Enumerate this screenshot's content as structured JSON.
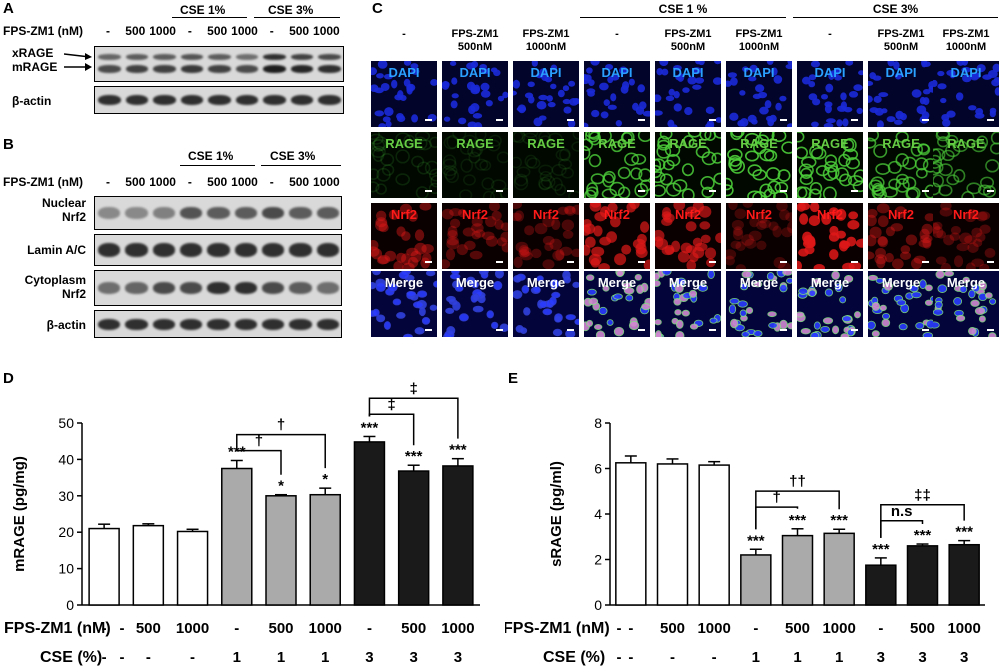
{
  "panel_labels": {
    "A": "A",
    "B": "B",
    "C": "C",
    "D": "D",
    "E": "E"
  },
  "blot_a": {
    "fps_label": "FPS-ZM1 (nM)",
    "cse1": "CSE 1%",
    "cse3": "CSE 3%",
    "lanes": [
      "-",
      "500",
      "1000",
      "-",
      "500",
      "1000",
      "-",
      "500",
      "1000"
    ],
    "rows": [
      {
        "label": "xRAGE\nmRAGE"
      },
      {
        "label": "β-actin"
      }
    ],
    "xrage": "xRAGE",
    "mrage": "mRAGE",
    "actin": "β-actin"
  },
  "blot_b": {
    "fps_label": "FPS-ZM1 (nM)",
    "cse1": "CSE 1%",
    "cse3": "CSE 3%",
    "lanes": [
      "-",
      "500",
      "1000",
      "-",
      "500",
      "1000",
      "-",
      "500",
      "1000"
    ],
    "nuclear": "Nuclear",
    "nrf2_a": "Nrf2",
    "lamin": "Lamin A/C",
    "cytoplasm": "Cytoplasm",
    "nrf2_b": "Nrf2",
    "actin": "β-actin"
  },
  "microscopy": {
    "cse1": "CSE 1 %",
    "cse3": "CSE 3%",
    "columns": [
      {
        "l1": "-",
        "l2": ""
      },
      {
        "l1": "FPS-ZM1",
        "l2": "500nM"
      },
      {
        "l1": "FPS-ZM1",
        "l2": "1000nM"
      },
      {
        "l1": "-",
        "l2": ""
      },
      {
        "l1": "FPS-ZM1",
        "l2": "500nM"
      },
      {
        "l1": "FPS-ZM1",
        "l2": "1000nM"
      },
      {
        "l1": "-",
        "l2": ""
      },
      {
        "l1": "FPS-ZM1",
        "l2": "500nM"
      },
      {
        "l1": "FPS-ZM1",
        "l2": "1000nM"
      }
    ],
    "rows": [
      {
        "label": "DAPI",
        "color": "#2aa0ff"
      },
      {
        "label": "RAGE",
        "color": "#66cc44"
      },
      {
        "label": "Nrf2",
        "color": "#ff1a1a"
      },
      {
        "label": "Merge",
        "color": "#ffffff"
      }
    ],
    "rage_intensity": [
      0.15,
      0.1,
      0.1,
      0.8,
      0.85,
      0.9,
      0.85,
      0.75,
      0.6
    ],
    "nrf2_intensity": [
      0.45,
      0.35,
      0.3,
      0.7,
      0.65,
      0.25,
      0.85,
      0.4,
      0.3
    ]
  },
  "chart_data": [
    {
      "type": "bar",
      "ylabel": "mRAGE (pg/mg)",
      "ylim": [
        0,
        50
      ],
      "yticks": [
        "0",
        "10",
        "20",
        "30",
        "40",
        "50"
      ],
      "values": [
        21,
        21.8,
        20.2,
        37.5,
        30,
        30.3,
        44.8,
        36.8,
        38.2
      ],
      "errors": [
        1.2,
        0.5,
        0.6,
        2.2,
        0.3,
        1.8,
        1.5,
        1.6,
        2.0
      ],
      "colors": [
        "#ffffff",
        "#ffffff",
        "#ffffff",
        "#aaaaaa",
        "#aaaaaa",
        "#aaaaaa",
        "#1a1a1a",
        "#1a1a1a",
        "#1a1a1a"
      ],
      "marks": [
        "",
        "",
        "",
        "***",
        "*",
        "*",
        "***",
        "***",
        "***"
      ],
      "row1_label": "FPS-ZM1 (nM)",
      "row1": [
        "-",
        "500",
        "1000",
        "-",
        "500",
        "1000",
        "-",
        "500",
        "1000"
      ],
      "row2_label": "CSE (%)",
      "row2": [
        "-",
        "-",
        "-",
        "1",
        "1",
        "1",
        "3",
        "3",
        "3"
      ],
      "brackets": [
        {
          "from": 3,
          "to": 4,
          "level": 1,
          "label": "†"
        },
        {
          "from": 3,
          "to": 5,
          "level": 2,
          "label": "†"
        },
        {
          "from": 6,
          "to": 7,
          "level": 1,
          "label": "‡"
        },
        {
          "from": 6,
          "to": 8,
          "level": 2,
          "label": "‡"
        }
      ]
    },
    {
      "type": "bar",
      "ylabel": "sRAGE (pg/ml)",
      "ylim": [
        0,
        8
      ],
      "yticks": [
        "0",
        "2",
        "4",
        "6",
        "8"
      ],
      "values": [
        6.25,
        6.2,
        6.15,
        2.2,
        3.05,
        3.15,
        1.75,
        2.6,
        2.65
      ],
      "errors": [
        0.3,
        0.22,
        0.15,
        0.25,
        0.3,
        0.18,
        0.32,
        0.08,
        0.18
      ],
      "colors": [
        "#ffffff",
        "#ffffff",
        "#ffffff",
        "#aaaaaa",
        "#aaaaaa",
        "#aaaaaa",
        "#1a1a1a",
        "#1a1a1a",
        "#1a1a1a"
      ],
      "marks": [
        "",
        "",
        "",
        "***",
        "***",
        "***",
        "***",
        "***",
        "***"
      ],
      "row1_label": "FPS-ZM1 (nM)",
      "row1": [
        "-",
        "500",
        "1000",
        "-",
        "500",
        "1000",
        "-",
        "500",
        "1000"
      ],
      "row2_label": "CSE (%)",
      "row2": [
        "-",
        "-",
        "-",
        "1",
        "1",
        "1",
        "3",
        "3",
        "3"
      ],
      "brackets": [
        {
          "from": 3,
          "to": 4,
          "level": 1,
          "label": "†"
        },
        {
          "from": 3,
          "to": 5,
          "level": 2,
          "label": "††"
        },
        {
          "from": 6,
          "to": 7,
          "level": 1,
          "label": "n.s"
        },
        {
          "from": 6,
          "to": 8,
          "level": 2,
          "label": "‡‡"
        }
      ]
    }
  ]
}
